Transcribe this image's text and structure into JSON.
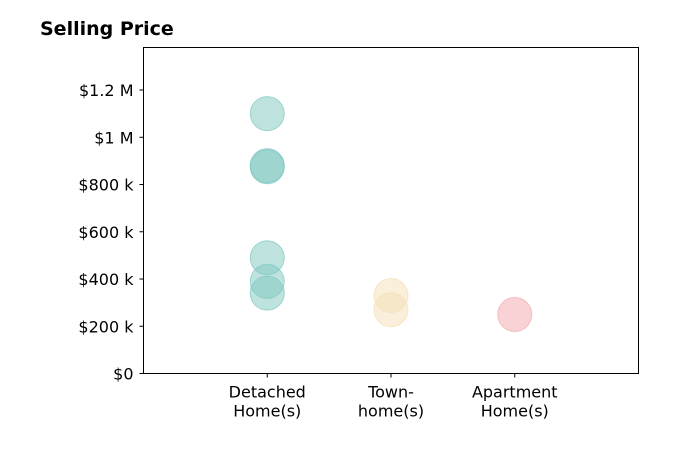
{
  "chart_data": {
    "type": "scatter",
    "title": "Selling Price",
    "xlabel": "",
    "ylabel": "",
    "categories": [
      {
        "id": "detached",
        "lines": [
          "Detached",
          "Home(s)"
        ]
      },
      {
        "id": "townhome",
        "lines": [
          "Town-",
          "home(s)"
        ]
      },
      {
        "id": "apartment",
        "lines": [
          "Apartment",
          "Home(s)"
        ]
      }
    ],
    "xlim": [
      0,
      4
    ],
    "ylim": [
      0,
      1380000
    ],
    "yticks": [
      {
        "value": 0,
        "label": "$0"
      },
      {
        "value": 200000,
        "label": "$200 k"
      },
      {
        "value": 400000,
        "label": "$400 k"
      },
      {
        "value": 600000,
        "label": "$600 k"
      },
      {
        "value": 800000,
        "label": "$800 k"
      },
      {
        "value": 1000000,
        "label": "$1 M"
      },
      {
        "value": 1200000,
        "label": "$1.2 M"
      }
    ],
    "grid": false,
    "legend": "none",
    "series": [
      {
        "category": "detached",
        "color": "#7ec8bf",
        "values": [
          1100000,
          880000,
          875000,
          490000,
          390000,
          340000
        ]
      },
      {
        "category": "townhome",
        "color": "#f3e0b5",
        "values": [
          330000,
          270000
        ]
      },
      {
        "category": "apartment",
        "color": "#f4a6ad",
        "values": [
          250000
        ]
      }
    ]
  }
}
